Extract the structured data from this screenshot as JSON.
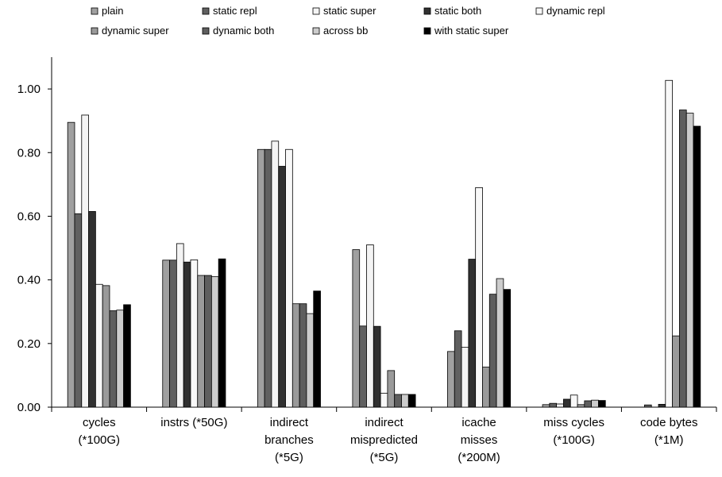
{
  "chart_data": {
    "type": "bar",
    "title": "",
    "xlabel": "",
    "ylabel": "",
    "ylim": [
      0,
      1.1
    ],
    "y_ticks": [
      "0.00",
      "0.20",
      "0.40",
      "0.60",
      "0.80",
      "1.00"
    ],
    "y_tick_values": [
      0,
      0.2,
      0.4,
      0.6,
      0.8,
      1.0
    ],
    "grid": false,
    "legend_position": "top",
    "categories": [
      [
        "cycles",
        "(*100G)"
      ],
      [
        "instrs (*50G)"
      ],
      [
        "indirect",
        "branches",
        "(*5G)"
      ],
      [
        "indirect",
        "mispredicted",
        "(*5G)"
      ],
      [
        "icache",
        "misses",
        "(*200M)"
      ],
      [
        "miss cycles",
        "(*100G)"
      ],
      [
        "code bytes",
        "(*1M)"
      ]
    ],
    "series": [
      {
        "name": "plain",
        "color": "#a0a0a0",
        "values": [
          0.895,
          0.462,
          0.81,
          0.495,
          0.175,
          0.008,
          0.0
        ]
      },
      {
        "name": "static repl",
        "color": "#606060",
        "values": [
          0.608,
          0.462,
          0.81,
          0.255,
          0.24,
          0.012,
          0.007
        ]
      },
      {
        "name": "static super",
        "color": "#f4f4f4",
        "values": [
          0.918,
          0.514,
          0.836,
          0.51,
          0.188,
          0.01,
          0.0
        ]
      },
      {
        "name": "static both",
        "color": "#303030",
        "values": [
          0.615,
          0.456,
          0.757,
          0.254,
          0.465,
          0.025,
          0.009
        ]
      },
      {
        "name": "dynamic repl",
        "color": "#f8f8f8",
        "values": [
          0.386,
          0.463,
          0.81,
          0.044,
          0.69,
          0.038,
          1.027
        ]
      },
      {
        "name": "dynamic super",
        "color": "#9a9a9a",
        "values": [
          0.382,
          0.414,
          0.325,
          0.115,
          0.126,
          0.008,
          0.224
        ]
      },
      {
        "name": "dynamic both",
        "color": "#5e5e5e",
        "values": [
          0.303,
          0.414,
          0.325,
          0.04,
          0.355,
          0.02,
          0.934
        ]
      },
      {
        "name": "across bb",
        "color": "#cccccc",
        "values": [
          0.305,
          0.41,
          0.294,
          0.04,
          0.404,
          0.022,
          0.924
        ]
      },
      {
        "name": "with static super",
        "color": "#000000",
        "values": [
          0.322,
          0.466,
          0.365,
          0.04,
          0.37,
          0.021,
          0.883
        ]
      }
    ]
  }
}
